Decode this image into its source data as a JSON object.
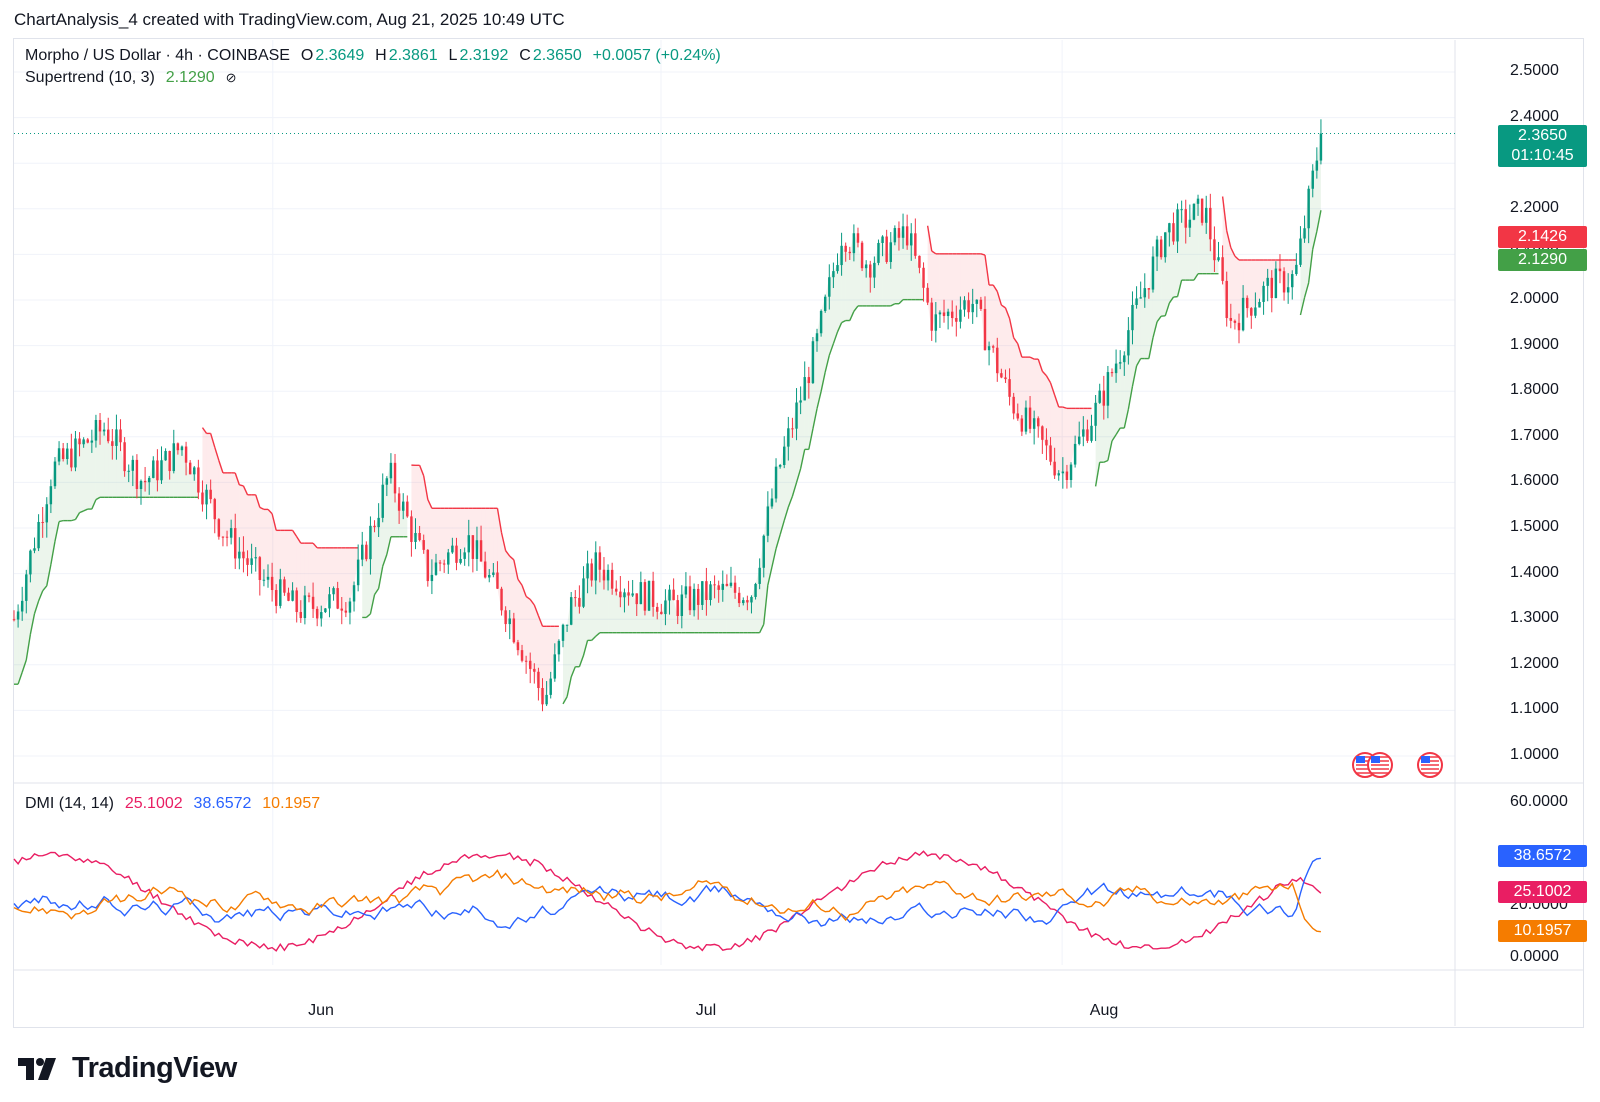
{
  "header": {
    "credit": "ChartAnalysis_4 created with TradingView.com, Aug 21, 2025 10:49 UTC"
  },
  "legend": {
    "symbol": "Morpho / US Dollar · 4h · COINBASE",
    "o_label": "O",
    "o_value": "2.3649",
    "h_label": "H",
    "h_value": "2.3861",
    "l_label": "L",
    "l_value": "2.3192",
    "c_label": "C",
    "c_value": "2.3650",
    "change": "+0.0057 (+0.24%)",
    "supertrend_label": "Supertrend (10, 3)",
    "supertrend_value": "2.1290",
    "eye_icon": "⊘",
    "dmi_label": "DMI (14, 14)",
    "dmi_adx": "25.1002",
    "dmi_plus": "38.6572",
    "dmi_minus": "10.1957"
  },
  "price_axis": [
    "2.5000",
    "2.4000",
    "2.3000",
    "2.2000",
    "2.1000",
    "2.0000",
    "1.9000",
    "1.8000",
    "1.7000",
    "1.6000",
    "1.5000",
    "1.4000",
    "1.3000",
    "1.2000",
    "1.1000",
    "1.0000"
  ],
  "dmi_axis": [
    "60.0000",
    "20.0000",
    "0.0000"
  ],
  "badges": {
    "last_price": "2.3650",
    "countdown": "01:10:45",
    "st_red": "2.1426",
    "st_green": "2.1290",
    "dmi_plus": "38.6572",
    "dmi_adx": "25.1002",
    "dmi_minus": "10.1957"
  },
  "time_axis": [
    "Jun",
    "Jul",
    "Aug"
  ],
  "logo": {
    "text": "TradingView"
  },
  "colors": {
    "up": "#089981",
    "down": "#f23645",
    "st_up": "#43a047",
    "st_down": "#f23645",
    "adx": "#e91e63",
    "plus_di": "#2962ff",
    "minus_di": "#f57c00"
  },
  "chart_data": [
    {
      "type": "candlestick",
      "title": "Morpho / US Dollar · 4h · COINBASE",
      "ylim": [
        0.95,
        2.55
      ],
      "x_range": [
        "May 12",
        "Aug 21"
      ],
      "close_keypoints": [
        [
          "May 12",
          1.3
        ],
        [
          "May 15",
          1.63
        ],
        [
          "May 19",
          1.72
        ],
        [
          "May 22",
          1.6
        ],
        [
          "May 25",
          1.68
        ],
        [
          "May 28",
          1.5
        ],
        [
          "May 31",
          1.39
        ],
        [
          "Jun 3",
          1.32
        ],
        [
          "Jun 7",
          1.35
        ],
        [
          "Jun 10",
          1.62
        ],
        [
          "Jun 13",
          1.4
        ],
        [
          "Jun 16",
          1.48
        ],
        [
          "Jun 19",
          1.32
        ],
        [
          "Jun 22",
          1.12
        ],
        [
          "Jun 24",
          1.33
        ],
        [
          "Jun 26",
          1.42
        ],
        [
          "Jun 29",
          1.36
        ],
        [
          "Jul 2",
          1.33
        ],
        [
          "Jul 5",
          1.36
        ],
        [
          "Jul 8",
          1.36
        ],
        [
          "Jul 10",
          1.62
        ],
        [
          "Jul 13",
          1.9
        ],
        [
          "Jul 15",
          2.15
        ],
        [
          "Jul 17",
          2.08
        ],
        [
          "Jul 20",
          2.15
        ],
        [
          "Jul 22",
          1.95
        ],
        [
          "Jul 25",
          2.0
        ],
        [
          "Jul 28",
          1.78
        ],
        [
          "Aug 1",
          1.62
        ],
        [
          "Aug 4",
          1.78
        ],
        [
          "Aug 7",
          2.0
        ],
        [
          "Aug 9",
          2.15
        ],
        [
          "Aug 12",
          2.2
        ],
        [
          "Aug 14",
          1.95
        ],
        [
          "Aug 17",
          2.03
        ],
        [
          "Aug 19",
          2.05
        ],
        [
          "Aug 21",
          2.365
        ]
      ],
      "last_close": 2.365
    },
    {
      "type": "line",
      "title": "Supertrend (10, 3)",
      "last_value": 2.129,
      "opposite_band_last": 2.1426
    },
    {
      "type": "line",
      "title": "DMI (14, 14)",
      "ylim": [
        0,
        65
      ],
      "series": [
        {
          "name": "ADX",
          "last_value": 25.1002
        },
        {
          "name": "+DI",
          "last_value": 38.6572
        },
        {
          "name": "-DI",
          "last_value": 10.1957
        }
      ]
    }
  ]
}
